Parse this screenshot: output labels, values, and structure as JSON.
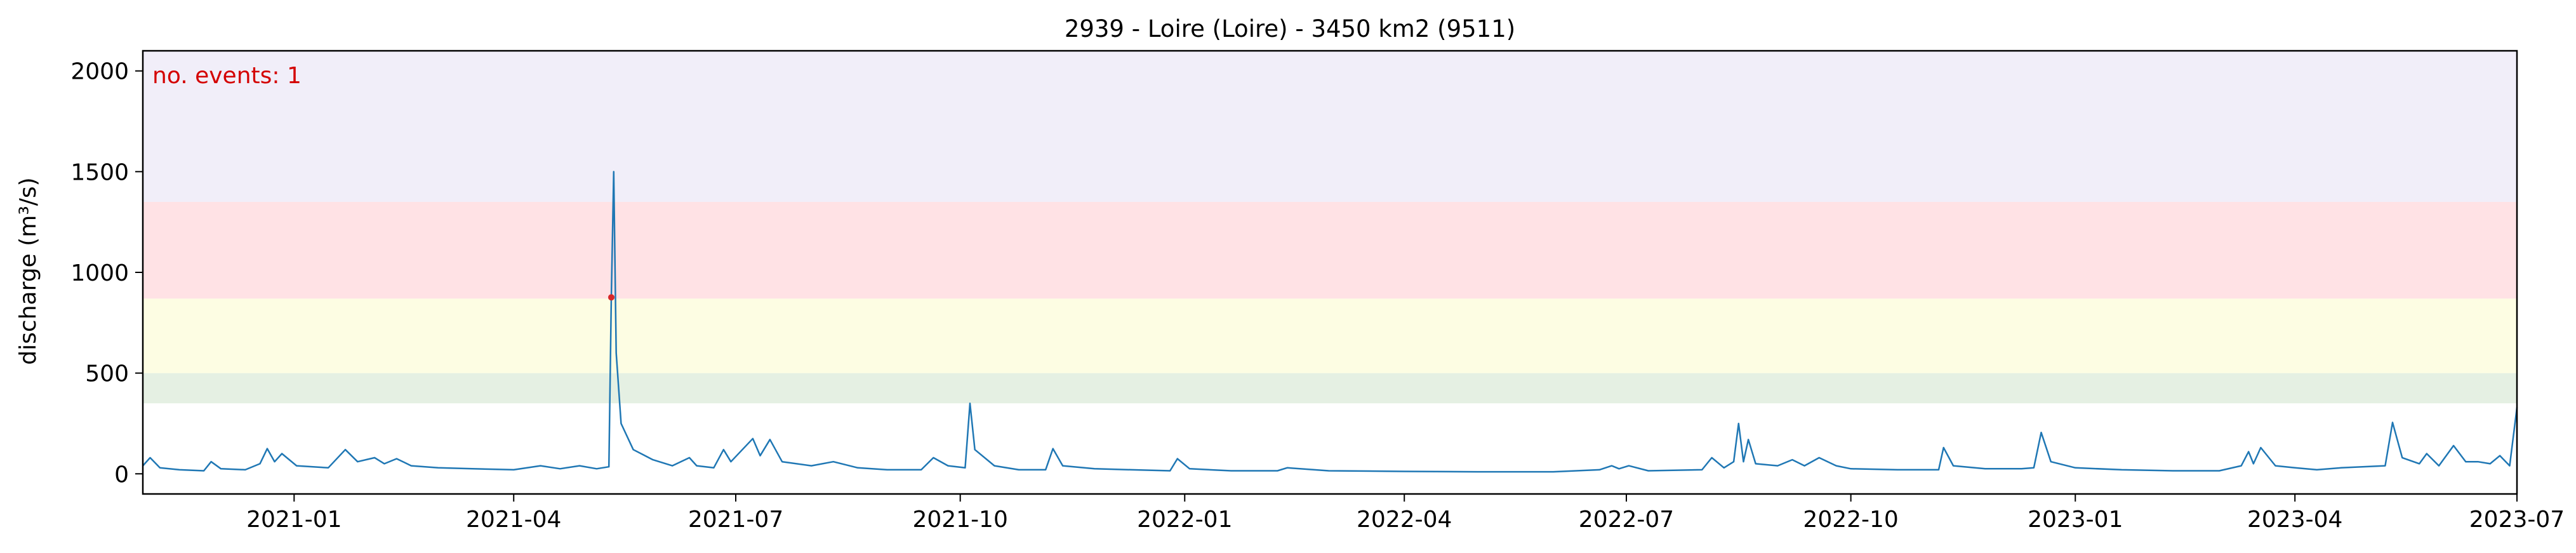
{
  "chart_data": {
    "type": "line",
    "title": "2939 - Loire (Loire) - 3450 km2 (9511)",
    "xlabel": "",
    "ylabel": "discharge (m³/s)",
    "x_range": [
      "2020-10-31",
      "2023-07-01"
    ],
    "ylim": [
      -100,
      2100
    ],
    "x_ticks": [
      {
        "date": "2021-01-01",
        "label": "2021-01"
      },
      {
        "date": "2021-04-01",
        "label": "2021-04"
      },
      {
        "date": "2021-07-01",
        "label": "2021-07"
      },
      {
        "date": "2021-10-01",
        "label": "2021-10"
      },
      {
        "date": "2022-01-01",
        "label": "2022-01"
      },
      {
        "date": "2022-04-01",
        "label": "2022-04"
      },
      {
        "date": "2022-07-01",
        "label": "2022-07"
      },
      {
        "date": "2022-10-01",
        "label": "2022-10"
      },
      {
        "date": "2023-01-01",
        "label": "2023-01"
      },
      {
        "date": "2023-04-01",
        "label": "2023-04"
      },
      {
        "date": "2023-07-01",
        "label": "2023-07"
      }
    ],
    "y_ticks": [
      0,
      500,
      1000,
      1500,
      2000
    ],
    "bands": [
      {
        "from": 350,
        "to": 500,
        "color": "#e5f0e3"
      },
      {
        "from": 500,
        "to": 870,
        "color": "#fdfde3"
      },
      {
        "from": 870,
        "to": 1350,
        "color": "#ffe2e5"
      },
      {
        "from": 1350,
        "to": 2100,
        "color": "#f1eef9"
      }
    ],
    "series": [
      {
        "color": "#1f77b4",
        "points": [
          [
            "2020-10-31",
            40
          ],
          [
            "2020-11-03",
            80
          ],
          [
            "2020-11-07",
            30
          ],
          [
            "2020-11-15",
            20
          ],
          [
            "2020-11-25",
            15
          ],
          [
            "2020-11-28",
            60
          ],
          [
            "2020-12-02",
            25
          ],
          [
            "2020-12-12",
            20
          ],
          [
            "2020-12-18",
            50
          ],
          [
            "2020-12-21",
            125
          ],
          [
            "2020-12-24",
            60
          ],
          [
            "2020-12-27",
            100
          ],
          [
            "2021-01-02",
            40
          ],
          [
            "2021-01-15",
            30
          ],
          [
            "2021-01-22",
            120
          ],
          [
            "2021-01-27",
            60
          ],
          [
            "2021-02-03",
            80
          ],
          [
            "2021-02-07",
            50
          ],
          [
            "2021-02-12",
            75
          ],
          [
            "2021-02-18",
            40
          ],
          [
            "2021-03-01",
            30
          ],
          [
            "2021-03-15",
            25
          ],
          [
            "2021-04-01",
            20
          ],
          [
            "2021-04-12",
            40
          ],
          [
            "2021-04-20",
            25
          ],
          [
            "2021-04-28",
            40
          ],
          [
            "2021-05-05",
            25
          ],
          [
            "2021-05-10",
            35
          ],
          [
            "2021-05-11",
            876
          ],
          [
            "2021-05-12",
            1500
          ],
          [
            "2021-05-13",
            600
          ],
          [
            "2021-05-15",
            250
          ],
          [
            "2021-05-20",
            120
          ],
          [
            "2021-05-28",
            70
          ],
          [
            "2021-06-05",
            40
          ],
          [
            "2021-06-12",
            80
          ],
          [
            "2021-06-15",
            40
          ],
          [
            "2021-06-22",
            30
          ],
          [
            "2021-06-26",
            120
          ],
          [
            "2021-06-29",
            60
          ],
          [
            "2021-07-08",
            175
          ],
          [
            "2021-07-11",
            90
          ],
          [
            "2021-07-15",
            170
          ],
          [
            "2021-07-20",
            60
          ],
          [
            "2021-08-01",
            40
          ],
          [
            "2021-08-10",
            60
          ],
          [
            "2021-08-20",
            30
          ],
          [
            "2021-09-01",
            20
          ],
          [
            "2021-09-15",
            20
          ],
          [
            "2021-09-20",
            80
          ],
          [
            "2021-09-26",
            40
          ],
          [
            "2021-10-03",
            30
          ],
          [
            "2021-10-05",
            350
          ],
          [
            "2021-10-07",
            120
          ],
          [
            "2021-10-15",
            40
          ],
          [
            "2021-10-25",
            20
          ],
          [
            "2021-11-05",
            20
          ],
          [
            "2021-11-08",
            125
          ],
          [
            "2021-11-12",
            40
          ],
          [
            "2021-11-25",
            25
          ],
          [
            "2021-12-10",
            20
          ],
          [
            "2021-12-26",
            15
          ],
          [
            "2021-12-29",
            75
          ],
          [
            "2022-01-03",
            25
          ],
          [
            "2022-01-20",
            15
          ],
          [
            "2022-02-08",
            15
          ],
          [
            "2022-02-12",
            30
          ],
          [
            "2022-03-01",
            15
          ],
          [
            "2022-04-01",
            12
          ],
          [
            "2022-05-01",
            10
          ],
          [
            "2022-06-01",
            10
          ],
          [
            "2022-06-20",
            20
          ],
          [
            "2022-06-25",
            40
          ],
          [
            "2022-06-28",
            25
          ],
          [
            "2022-07-02",
            40
          ],
          [
            "2022-07-10",
            15
          ],
          [
            "2022-08-01",
            20
          ],
          [
            "2022-08-05",
            80
          ],
          [
            "2022-08-10",
            30
          ],
          [
            "2022-08-14",
            60
          ],
          [
            "2022-08-16",
            250
          ],
          [
            "2022-08-18",
            60
          ],
          [
            "2022-08-20",
            170
          ],
          [
            "2022-08-23",
            50
          ],
          [
            "2022-09-01",
            40
          ],
          [
            "2022-09-07",
            70
          ],
          [
            "2022-09-12",
            40
          ],
          [
            "2022-09-18",
            80
          ],
          [
            "2022-09-25",
            40
          ],
          [
            "2022-10-01",
            25
          ],
          [
            "2022-10-20",
            20
          ],
          [
            "2022-11-01",
            20
          ],
          [
            "2022-11-06",
            20
          ],
          [
            "2022-11-08",
            130
          ],
          [
            "2022-11-12",
            40
          ],
          [
            "2022-11-25",
            25
          ],
          [
            "2022-12-10",
            25
          ],
          [
            "2022-12-15",
            30
          ],
          [
            "2022-12-18",
            205
          ],
          [
            "2022-12-22",
            60
          ],
          [
            "2023-01-01",
            30
          ],
          [
            "2023-01-20",
            20
          ],
          [
            "2023-02-10",
            15
          ],
          [
            "2023-03-01",
            15
          ],
          [
            "2023-03-10",
            40
          ],
          [
            "2023-03-13",
            110
          ],
          [
            "2023-03-15",
            50
          ],
          [
            "2023-03-18",
            130
          ],
          [
            "2023-03-24",
            40
          ],
          [
            "2023-04-01",
            30
          ],
          [
            "2023-04-10",
            20
          ],
          [
            "2023-04-20",
            30
          ],
          [
            "2023-05-08",
            40
          ],
          [
            "2023-05-11",
            255
          ],
          [
            "2023-05-15",
            80
          ],
          [
            "2023-05-22",
            50
          ],
          [
            "2023-05-25",
            100
          ],
          [
            "2023-05-30",
            40
          ],
          [
            "2023-06-05",
            140
          ],
          [
            "2023-06-10",
            60
          ],
          [
            "2023-06-15",
            60
          ],
          [
            "2023-06-20",
            50
          ],
          [
            "2023-06-24",
            90
          ],
          [
            "2023-06-28",
            40
          ],
          [
            "2023-07-01",
            330
          ]
        ]
      }
    ],
    "events": [
      {
        "date": "2021-05-11",
        "value": 876,
        "color": "#d62728"
      }
    ],
    "annotation": "no. events: 1",
    "grid": false,
    "legend": "none"
  }
}
